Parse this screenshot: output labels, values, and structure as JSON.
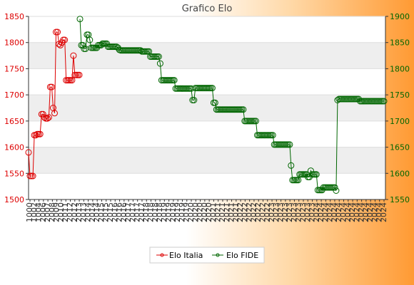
{
  "colors": {
    "italia": "#dd0000",
    "fide": "#006600",
    "axis": "#333333",
    "band": "#eeeeee"
  },
  "chart_data": {
    "type": "line",
    "title": "Grafico Elo",
    "xlabel": "",
    "ylabel": "",
    "grid": true,
    "legend_position": "bottom",
    "y_left": {
      "min": 1500,
      "max": 1850,
      "ticks": [
        1500,
        1550,
        1600,
        1650,
        1700,
        1750,
        1800,
        1850
      ]
    },
    "y_right": {
      "min": 1550,
      "max": 1900,
      "ticks": [
        1550,
        1600,
        1650,
        1700,
        1750,
        1800,
        1850,
        1900
      ]
    },
    "series": [
      {
        "name": "Elo Italia",
        "axis": "left",
        "values": [
          1590,
          1545,
          1545,
          1545,
          1623,
          1623,
          1625,
          1625,
          1625,
          1663,
          1663,
          1657,
          1655,
          1655,
          1657,
          1715,
          1715,
          1675,
          1665,
          1820,
          1820,
          1797,
          1795,
          1800,
          1805,
          1805,
          1728,
          1728,
          1728,
          1728,
          1728,
          1775,
          1738,
          1738,
          1738,
          1738
        ]
      },
      {
        "name": "Elo FIDE",
        "axis": "right",
        "values": [
          1895,
          1845,
          1845,
          1838,
          1838,
          1865,
          1865,
          1855,
          1840,
          1840,
          1840,
          1840,
          1840,
          1845,
          1845,
          1845,
          1848,
          1848,
          1848,
          1848,
          1842,
          1842,
          1842,
          1842,
          1842,
          1842,
          1842,
          1840,
          1836,
          1835,
          1835,
          1835,
          1835,
          1835,
          1835,
          1835,
          1835,
          1835,
          1835,
          1835,
          1835,
          1835,
          1835,
          1835,
          1833,
          1833,
          1833,
          1833,
          1833,
          1833,
          1823,
          1823,
          1823,
          1823,
          1823,
          1823,
          1823,
          1810,
          1778,
          1778,
          1778,
          1778,
          1778,
          1778,
          1778,
          1778,
          1778,
          1778,
          1762,
          1762,
          1762,
          1762,
          1762,
          1762,
          1762,
          1762,
          1762,
          1762,
          1762,
          1762,
          1740,
          1740,
          1763,
          1763,
          1763,
          1763,
          1763,
          1763,
          1763,
          1763,
          1763,
          1763,
          1763,
          1763,
          1763,
          1735,
          1735,
          1722,
          1722,
          1722,
          1722,
          1722,
          1722,
          1722,
          1722,
          1722,
          1722,
          1722,
          1722,
          1722,
          1722,
          1722,
          1722,
          1722,
          1722,
          1722,
          1722,
          1700,
          1700,
          1700,
          1700,
          1700,
          1700,
          1700,
          1700,
          1700,
          1673,
          1673,
          1673,
          1673,
          1673,
          1673,
          1673,
          1673,
          1673,
          1673,
          1673,
          1673,
          1655,
          1655,
          1655,
          1655,
          1655,
          1655,
          1655,
          1655,
          1655,
          1655,
          1655,
          1655,
          1615,
          1587,
          1587,
          1587,
          1587,
          1587,
          1598,
          1598,
          1598,
          1598,
          1598,
          1598,
          1593,
          1593,
          1605,
          1598,
          1598,
          1598,
          1598,
          1568,
          1568,
          1568,
          1568,
          1573,
          1573,
          1573,
          1573,
          1573,
          1573,
          1573,
          1573,
          1573,
          1567,
          1740,
          1742,
          1742,
          1742,
          1742,
          1742,
          1742,
          1742,
          1742,
          1742,
          1742,
          1742,
          1742,
          1742,
          1742,
          1742,
          1738,
          1738,
          1738,
          1738,
          1738,
          1738,
          1738,
          1738,
          1738,
          1738,
          1738,
          1738,
          1738,
          1738,
          1738,
          1738,
          1738,
          1738
        ]
      }
    ],
    "x_tick_labels": [
      "1000",
      "1002",
      "1004",
      "2006",
      "2007",
      "2008",
      "2009",
      "2010",
      "2011",
      "2012",
      "2012",
      "2013",
      "2013",
      "2014",
      "2014",
      "2014",
      "2015",
      "2015",
      "2015",
      "2016",
      "2016",
      "2016",
      "2017",
      "2017",
      "2017",
      "2017",
      "2018",
      "2018",
      "2018",
      "2018",
      "2019",
      "2019",
      "2019",
      "2019",
      "2019",
      "2019",
      "2020",
      "2020",
      "2020",
      "2020",
      "2020",
      "2021",
      "2021",
      "2021",
      "2021",
      "2021",
      "2021",
      "2022",
      "2022",
      "2022",
      "2022",
      "2022",
      "2022",
      "2022",
      "2023",
      "2023",
      "2023",
      "2023",
      "2023",
      "2023",
      "2023",
      "2023",
      "2023",
      "2023",
      "2024",
      "2024",
      "2024",
      "2024",
      "2024",
      "2024",
      "2024",
      "2024",
      "2024",
      "2024",
      "2024",
      "2024",
      "2024",
      "2024",
      "2024",
      "2024"
    ],
    "legend": [
      "Elo Italia",
      "Elo FIDE"
    ]
  }
}
